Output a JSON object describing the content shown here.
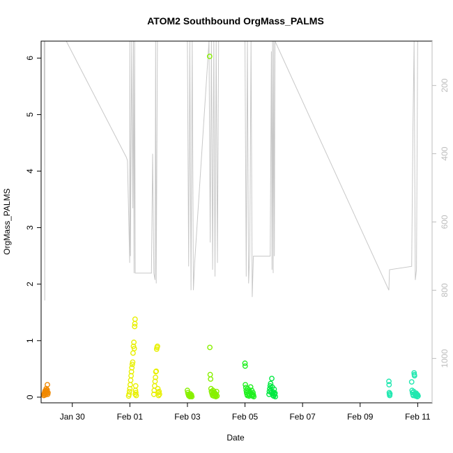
{
  "chart_data": {
    "type": "scatter",
    "title": "ATOM2 Southbound OrgMass_PALMS",
    "xlabel": "Date",
    "ylabel": "OrgMass_PALMS",
    "xlim": [
      "2017-01-28T22:00",
      "2017-02-11T12:00"
    ],
    "ylim": [
      -0.1,
      6.3
    ],
    "y_ticks": [
      0,
      1,
      2,
      3,
      4,
      5,
      6
    ],
    "x_ticks": [
      {
        "date": "2017-01-30T00:00",
        "label": "Jan 30"
      },
      {
        "date": "2017-02-01T00:00",
        "label": "Feb 01"
      },
      {
        "date": "2017-02-03T00:00",
        "label": "Feb 03"
      },
      {
        "date": "2017-02-05T00:00",
        "label": "Feb 05"
      },
      {
        "date": "2017-02-07T00:00",
        "label": "Feb 07"
      },
      {
        "date": "2017-02-09T00:00",
        "label": "Feb 09"
      },
      {
        "date": "2017-02-11T00:00",
        "label": "Feb 11"
      }
    ],
    "right_axis": {
      "range_top": 70,
      "range_bottom": 1130,
      "ticks": [
        200,
        400,
        600,
        800,
        1000
      ],
      "color": "#bdbdbd",
      "reversed": true
    },
    "background_line": {
      "color": "#c8c8c8",
      "points": [
        [
          "2017-01-29T00:30",
          70
        ],
        [
          "2017-01-29T00:35",
          300
        ],
        [
          "2017-01-29T00:40",
          70
        ],
        [
          "2017-01-29T01:00",
          830
        ],
        [
          "2017-01-29T01:10",
          70
        ],
        [
          "2017-01-29T19:00",
          70
        ],
        [
          "2017-01-31T21:00",
          410
        ],
        [
          "2017-01-31T22:00",
          420
        ],
        [
          "2017-01-31T23:50",
          720
        ],
        [
          "2017-02-01T00:00",
          70
        ],
        [
          "2017-02-01T00:30",
          700
        ],
        [
          "2017-02-01T01:30",
          70
        ],
        [
          "2017-02-01T02:30",
          560
        ],
        [
          "2017-02-01T03:00",
          70
        ],
        [
          "2017-02-01T03:30",
          750
        ],
        [
          "2017-02-01T04:00",
          70
        ],
        [
          "2017-02-01T04:30",
          750
        ],
        [
          "2017-02-01T18:00",
          750
        ],
        [
          "2017-02-01T19:00",
          400
        ],
        [
          "2017-02-01T20:00",
          750
        ],
        [
          "2017-02-01T21:00",
          770
        ],
        [
          "2017-02-01T21:30",
          70
        ],
        [
          "2017-02-01T22:00",
          780
        ],
        [
          "2017-02-01T23:00",
          70
        ],
        [
          "2017-02-03T00:00",
          70
        ],
        [
          "2017-02-03T01:00",
          730
        ],
        [
          "2017-02-03T02:00",
          70
        ],
        [
          "2017-02-03T03:00",
          800
        ],
        [
          "2017-02-03T04:00",
          70
        ],
        [
          "2017-02-03T05:00",
          800
        ],
        [
          "2017-02-03T06:00",
          720
        ],
        [
          "2017-02-03T18:00",
          70
        ],
        [
          "2017-02-03T19:00",
          660
        ],
        [
          "2017-02-03T20:00",
          70
        ],
        [
          "2017-02-03T21:00",
          740
        ],
        [
          "2017-02-03T22:00",
          70
        ],
        [
          "2017-02-03T23:00",
          760
        ],
        [
          "2017-02-04T00:00",
          70
        ],
        [
          "2017-02-04T01:00",
          720
        ],
        [
          "2017-02-04T02:00",
          70
        ],
        [
          "2017-02-05T00:00",
          70
        ],
        [
          "2017-02-05T01:00",
          760
        ],
        [
          "2017-02-05T02:00",
          70
        ],
        [
          "2017-02-05T03:00",
          780
        ],
        [
          "2017-02-05T04:00",
          690
        ],
        [
          "2017-02-05T05:00",
          70
        ],
        [
          "2017-02-05T06:00",
          820
        ],
        [
          "2017-02-05T07:00",
          700
        ],
        [
          "2017-02-05T21:00",
          700
        ],
        [
          "2017-02-05T22:00",
          100
        ],
        [
          "2017-02-05T22:30",
          740
        ],
        [
          "2017-02-05T23:00",
          70
        ],
        [
          "2017-02-05T23:30",
          750
        ],
        [
          "2017-02-06T00:00",
          70
        ],
        [
          "2017-02-06T00:30",
          700
        ],
        [
          "2017-02-06T01:00",
          70
        ],
        [
          "2017-02-10T00:00",
          800
        ],
        [
          "2017-02-10T00:30",
          740
        ],
        [
          "2017-02-10T19:00",
          730
        ],
        [
          "2017-02-10T20:00",
          330
        ],
        [
          "2017-02-10T21:00",
          70
        ],
        [
          "2017-02-10T22:00",
          770
        ],
        [
          "2017-02-10T23:00",
          740
        ],
        [
          "2017-02-11T00:00",
          70
        ]
      ]
    },
    "series": [
      {
        "color": "#f08800",
        "points": [
          [
            "2017-01-29T00:15",
            0.03
          ],
          [
            "2017-01-29T00:30",
            0.05
          ],
          [
            "2017-01-29T00:45",
            0.07
          ],
          [
            "2017-01-29T01:00",
            0.09
          ],
          [
            "2017-01-29T01:15",
            0.11
          ],
          [
            "2017-01-29T01:30",
            0.04
          ],
          [
            "2017-01-29T01:45",
            0.08
          ],
          [
            "2017-01-29T02:00",
            0.12
          ],
          [
            "2017-01-29T02:15",
            0.15
          ],
          [
            "2017-01-29T02:30",
            0.06
          ],
          [
            "2017-01-29T02:45",
            0.1
          ],
          [
            "2017-01-29T03:00",
            0.13
          ],
          [
            "2017-01-29T03:15",
            0.22
          ],
          [
            "2017-01-29T03:30",
            0.05
          ],
          [
            "2017-01-29T03:45",
            0.08
          ]
        ]
      },
      {
        "color": "#e8f000",
        "points": [
          [
            "2017-01-31T23:00",
            0.02
          ],
          [
            "2017-01-31T23:20",
            0.05
          ],
          [
            "2017-01-31T23:40",
            0.1
          ],
          [
            "2017-02-01T00:00",
            0.15
          ],
          [
            "2017-02-01T00:20",
            0.22
          ],
          [
            "2017-02-01T00:40",
            0.3
          ],
          [
            "2017-02-01T01:00",
            0.38
          ],
          [
            "2017-02-01T01:20",
            0.45
          ],
          [
            "2017-02-01T01:40",
            0.52
          ],
          [
            "2017-02-01T02:00",
            0.58
          ],
          [
            "2017-02-01T02:20",
            0.62
          ],
          [
            "2017-02-01T02:40",
            0.78
          ],
          [
            "2017-02-01T03:00",
            0.9
          ],
          [
            "2017-02-01T03:20",
            0.97
          ],
          [
            "2017-02-01T03:40",
            0.86
          ],
          [
            "2017-02-01T04:00",
            1.25
          ],
          [
            "2017-02-01T04:10",
            1.3
          ],
          [
            "2017-02-01T04:20",
            1.38
          ],
          [
            "2017-02-01T04:30",
            0.05
          ],
          [
            "2017-02-01T04:40",
            0.12
          ],
          [
            "2017-02-01T04:50",
            0.2
          ],
          [
            "2017-02-01T05:00",
            0.08
          ],
          [
            "2017-02-01T05:20",
            0.03
          ],
          [
            "2017-02-01T20:00",
            0.05
          ],
          [
            "2017-02-01T20:20",
            0.12
          ],
          [
            "2017-02-01T20:40",
            0.2
          ],
          [
            "2017-02-01T21:00",
            0.28
          ],
          [
            "2017-02-01T21:20",
            0.35
          ],
          [
            "2017-02-01T21:40",
            0.45
          ],
          [
            "2017-02-01T22:00",
            0.46
          ],
          [
            "2017-02-01T22:20",
            0.85
          ],
          [
            "2017-02-01T22:40",
            0.88
          ],
          [
            "2017-02-01T23:00",
            0.9
          ],
          [
            "2017-02-01T23:20",
            0.15
          ],
          [
            "2017-02-01T23:40",
            0.08
          ],
          [
            "2017-02-02T00:00",
            0.03
          ],
          [
            "2017-02-02T00:20",
            0.1
          ],
          [
            "2017-02-02T00:40",
            0.05
          ]
        ]
      },
      {
        "color": "#88f000",
        "points": [
          [
            "2017-02-03T00:00",
            0.12
          ],
          [
            "2017-02-03T00:20",
            0.08
          ],
          [
            "2017-02-03T00:40",
            0.05
          ],
          [
            "2017-02-03T01:00",
            0.03
          ],
          [
            "2017-02-03T01:20",
            0.02
          ],
          [
            "2017-02-03T01:40",
            0.04
          ],
          [
            "2017-02-03T02:00",
            0.01
          ],
          [
            "2017-02-03T02:20",
            0.06
          ],
          [
            "2017-02-03T02:40",
            0.03
          ],
          [
            "2017-02-03T03:00",
            0.02
          ],
          [
            "2017-02-03T03:20",
            0.04
          ],
          [
            "2017-02-03T03:40",
            0.01
          ],
          [
            "2017-02-03T18:30",
            6.03
          ],
          [
            "2017-02-03T18:40",
            0.88
          ],
          [
            "2017-02-03T19:00",
            0.4
          ],
          [
            "2017-02-03T19:20",
            0.32
          ],
          [
            "2017-02-03T19:40",
            0.15
          ],
          [
            "2017-02-03T20:00",
            0.1
          ],
          [
            "2017-02-03T20:20",
            0.08
          ],
          [
            "2017-02-03T20:40",
            0.05
          ],
          [
            "2017-02-03T21:00",
            0.03
          ],
          [
            "2017-02-03T21:20",
            0.12
          ],
          [
            "2017-02-03T21:40",
            0.06
          ],
          [
            "2017-02-03T22:00",
            0.02
          ],
          [
            "2017-02-03T22:20",
            0.09
          ],
          [
            "2017-02-03T22:40",
            0.04
          ],
          [
            "2017-02-03T23:00",
            0.07
          ],
          [
            "2017-02-03T23:20",
            0.03
          ],
          [
            "2017-02-03T23:40",
            0.01
          ],
          [
            "2017-02-04T00:00",
            0.05
          ],
          [
            "2017-02-04T00:20",
            0.1
          ],
          [
            "2017-02-04T00:40",
            0.02
          ]
        ]
      },
      {
        "color": "#20f020",
        "points": [
          [
            "2017-02-05T00:00",
            0.6
          ],
          [
            "2017-02-05T00:10",
            0.55
          ],
          [
            "2017-02-05T00:20",
            0.22
          ],
          [
            "2017-02-05T00:40",
            0.17
          ],
          [
            "2017-02-05T01:00",
            0.12
          ],
          [
            "2017-02-05T01:20",
            0.08
          ],
          [
            "2017-02-05T01:40",
            0.05
          ],
          [
            "2017-02-05T02:00",
            0.03
          ],
          [
            "2017-02-05T02:20",
            0.15
          ],
          [
            "2017-02-05T02:40",
            0.1
          ],
          [
            "2017-02-05T03:00",
            0.06
          ],
          [
            "2017-02-05T03:20",
            0.02
          ],
          [
            "2017-02-05T04:00",
            0.04
          ],
          [
            "2017-02-05T04:20",
            0.09
          ],
          [
            "2017-02-05T04:40",
            0.18
          ],
          [
            "2017-02-05T05:00",
            0.07
          ],
          [
            "2017-02-05T05:20",
            0.03
          ],
          [
            "2017-02-05T05:40",
            0.12
          ],
          [
            "2017-02-05T06:00",
            0.05
          ],
          [
            "2017-02-05T06:20",
            0.02
          ],
          [
            "2017-02-05T06:40",
            0.08
          ],
          [
            "2017-02-05T07:00",
            0.04
          ],
          [
            "2017-02-05T07:20",
            0.01
          ]
        ]
      },
      {
        "color": "#00e840",
        "points": [
          [
            "2017-02-05T20:00",
            0.05
          ],
          [
            "2017-02-05T20:20",
            0.1
          ],
          [
            "2017-02-05T20:40",
            0.15
          ],
          [
            "2017-02-05T21:00",
            0.2
          ],
          [
            "2017-02-05T21:20",
            0.24
          ],
          [
            "2017-02-05T21:40",
            0.12
          ],
          [
            "2017-02-05T22:00",
            0.08
          ],
          [
            "2017-02-05T22:20",
            0.33
          ],
          [
            "2017-02-05T22:40",
            0.18
          ],
          [
            "2017-02-05T23:00",
            0.06
          ],
          [
            "2017-02-05T23:20",
            0.03
          ],
          [
            "2017-02-05T23:40",
            0.09
          ],
          [
            "2017-02-06T00:00",
            0.02
          ],
          [
            "2017-02-06T00:20",
            0.14
          ],
          [
            "2017-02-06T00:40",
            0.05
          ],
          [
            "2017-02-06T01:00",
            0.07
          ],
          [
            "2017-02-06T01:20",
            0.01
          ]
        ]
      },
      {
        "color": "#20e8b0",
        "points": [
          [
            "2017-02-10T00:00",
            0.28
          ],
          [
            "2017-02-10T00:10",
            0.22
          ],
          [
            "2017-02-10T00:20",
            0.08
          ],
          [
            "2017-02-10T00:30",
            0.05
          ],
          [
            "2017-02-10T00:40",
            0.03
          ],
          [
            "2017-02-10T00:50",
            0.06
          ],
          [
            "2017-02-10T19:00",
            0.27
          ],
          [
            "2017-02-10T19:20",
            0.12
          ],
          [
            "2017-02-10T19:40",
            0.08
          ],
          [
            "2017-02-10T20:00",
            0.05
          ],
          [
            "2017-02-10T20:20",
            0.03
          ],
          [
            "2017-02-10T20:40",
            0.1
          ],
          [
            "2017-02-10T21:00",
            0.43
          ],
          [
            "2017-02-10T21:10",
            0.4
          ],
          [
            "2017-02-10T21:20",
            0.38
          ],
          [
            "2017-02-10T21:40",
            0.06
          ],
          [
            "2017-02-10T22:00",
            0.04
          ],
          [
            "2017-02-10T22:20",
            0.02
          ],
          [
            "2017-02-10T22:40",
            0.07
          ],
          [
            "2017-02-10T23:00",
            0.03
          ],
          [
            "2017-02-10T23:20",
            0.05
          ],
          [
            "2017-02-10T23:40",
            0.01
          ],
          [
            "2017-02-11T00:00",
            0.04
          ],
          [
            "2017-02-11T00:20",
            0.02
          ]
        ]
      }
    ]
  }
}
